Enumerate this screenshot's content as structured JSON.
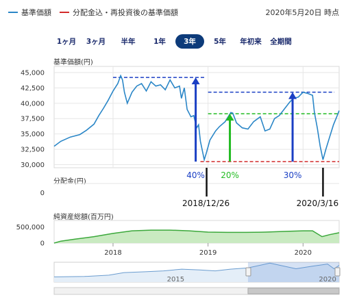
{
  "legend": [
    {
      "label": "基準価額",
      "color": "#2a86c7"
    },
    {
      "label": "分配金込・再投資後の基準価額",
      "color": "#d22a2a"
    }
  ],
  "as_of": "2020年5月20日 時点",
  "tabs": [
    {
      "label": "1ヶ月",
      "active": false
    },
    {
      "label": "3ヶ月",
      "active": false
    },
    {
      "label": "半年",
      "active": false
    },
    {
      "label": "1年",
      "active": false
    },
    {
      "label": "3年",
      "active": true
    },
    {
      "label": "5年",
      "active": false
    },
    {
      "label": "年初来",
      "active": false
    },
    {
      "label": "全期間",
      "active": false
    }
  ],
  "sections": {
    "nav": "基準価額(円)",
    "dist": "分配金(円)",
    "assets": "純資産総額(百万円)"
  },
  "chart_data": [
    {
      "type": "line",
      "ylabel": "基準価額(円)",
      "yticks": [
        "45,000",
        "42,500",
        "40,000",
        "37,500",
        "35,000",
        "32,500",
        "30,000"
      ],
      "ylim": [
        29500,
        46000
      ],
      "xlim": [
        2017.38,
        2020.38
      ],
      "series": [
        {
          "color": "#2a86c7",
          "points": [
            [
              2017.38,
              33000
            ],
            [
              2017.45,
              33800
            ],
            [
              2017.55,
              34500
            ],
            [
              2017.65,
              34900
            ],
            [
              2017.72,
              35600
            ],
            [
              2017.8,
              36600
            ],
            [
              2017.85,
              38000
            ],
            [
              2017.9,
              39200
            ],
            [
              2017.95,
              40500
            ],
            [
              2018.0,
              42000
            ],
            [
              2018.05,
              43200
            ],
            [
              2018.08,
              44500
            ],
            [
              2018.1,
              43800
            ],
            [
              2018.12,
              41800
            ],
            [
              2018.15,
              40000
            ],
            [
              2018.2,
              41800
            ],
            [
              2018.25,
              42800
            ],
            [
              2018.3,
              43200
            ],
            [
              2018.35,
              42000
            ],
            [
              2018.4,
              43500
            ],
            [
              2018.45,
              42800
            ],
            [
              2018.5,
              43000
            ],
            [
              2018.55,
              42200
            ],
            [
              2018.6,
              43800
            ],
            [
              2018.65,
              42500
            ],
            [
              2018.7,
              42800
            ],
            [
              2018.72,
              40800
            ],
            [
              2018.75,
              42500
            ],
            [
              2018.78,
              39000
            ],
            [
              2018.82,
              37800
            ],
            [
              2018.85,
              38000
            ],
            [
              2018.88,
              36000
            ],
            [
              2018.9,
              36500
            ],
            [
              2018.92,
              33800
            ],
            [
              2018.96,
              30800
            ],
            [
              2018.98,
              31800
            ],
            [
              2019.02,
              34000
            ],
            [
              2019.08,
              35500
            ],
            [
              2019.12,
              36200
            ],
            [
              2019.18,
              37000
            ],
            [
              2019.24,
              38500
            ],
            [
              2019.26,
              38400
            ],
            [
              2019.3,
              36800
            ],
            [
              2019.36,
              36000
            ],
            [
              2019.42,
              35800
            ],
            [
              2019.48,
              37000
            ],
            [
              2019.55,
              37800
            ],
            [
              2019.6,
              35500
            ],
            [
              2019.65,
              35800
            ],
            [
              2019.7,
              37500
            ],
            [
              2019.75,
              38000
            ],
            [
              2019.8,
              39000
            ],
            [
              2019.86,
              40200
            ],
            [
              2019.9,
              40800
            ],
            [
              2019.95,
              41000
            ],
            [
              2020.0,
              41800
            ],
            [
              2020.05,
              41600
            ],
            [
              2020.1,
              41300
            ],
            [
              2020.12,
              38500
            ],
            [
              2020.15,
              36000
            ],
            [
              2020.18,
              33000
            ],
            [
              2020.21,
              30800
            ],
            [
              2020.24,
              32500
            ],
            [
              2020.28,
              34500
            ],
            [
              2020.32,
              36500
            ],
            [
              2020.36,
              38000
            ],
            [
              2020.38,
              38800
            ]
          ]
        }
      ],
      "annotations": [
        {
          "text": "40%",
          "color": "#1a3fc4"
        },
        {
          "text": "20%",
          "color": "#22bb22"
        },
        {
          "text": "30%",
          "color": "#1a3fc4"
        },
        {
          "text": "2018/12/26",
          "color": "#111111"
        },
        {
          "text": "2020/3/16",
          "color": "#111111"
        }
      ],
      "reference_lines": [
        {
          "value": 44200,
          "color": "#1a3fc4",
          "x_range": [
            2018.0,
            2018.97
          ]
        },
        {
          "value": 41800,
          "color": "#1a3fc4",
          "x_range": [
            2019.0,
            2020.33
          ]
        },
        {
          "value": 38300,
          "color": "#22bb22",
          "x_range": [
            2019.0,
            2020.38
          ]
        },
        {
          "value": 30500,
          "color": "#d22a2a",
          "x_range": [
            2018.92,
            2020.38
          ]
        }
      ]
    },
    {
      "type": "line",
      "ylabel": "分配金(円)",
      "yticks": [
        "0"
      ],
      "series": [
        {
          "color": "#2a86c7",
          "points": [
            [
              2017.38,
              0
            ],
            [
              2020.38,
              0
            ]
          ]
        }
      ]
    },
    {
      "type": "area",
      "ylabel": "純資産総額(百万円)",
      "yticks": [
        "500,000",
        "0"
      ],
      "xticks": [
        "2018",
        "2019",
        "2020"
      ],
      "ylim": [
        0,
        700000
      ],
      "xlim": [
        2017.38,
        2020.38
      ],
      "series": [
        {
          "color": "#3ba83b",
          "points": [
            [
              2017.38,
              0
            ],
            [
              2017.45,
              60000
            ],
            [
              2017.6,
              120000
            ],
            [
              2017.8,
              200000
            ],
            [
              2018.0,
              300000
            ],
            [
              2018.2,
              380000
            ],
            [
              2018.4,
              400000
            ],
            [
              2018.6,
              400000
            ],
            [
              2018.8,
              380000
            ],
            [
              2019.0,
              340000
            ],
            [
              2019.2,
              330000
            ],
            [
              2019.4,
              330000
            ],
            [
              2019.6,
              340000
            ],
            [
              2019.8,
              360000
            ],
            [
              2020.0,
              380000
            ],
            [
              2020.1,
              380000
            ],
            [
              2020.2,
              200000
            ],
            [
              2020.28,
              260000
            ],
            [
              2020.38,
              320000
            ]
          ]
        }
      ]
    },
    {
      "type": "area",
      "ylabel": "",
      "xticks": [
        "2015",
        "2020"
      ],
      "ylim": [
        0,
        46000
      ],
      "xlim": [
        2011.0,
        2020.38
      ],
      "selected_range": [
        2017.38,
        2020.38
      ],
      "series": [
        {
          "color": "#2a86c7",
          "points": [
            [
              2011.0,
              12000
            ],
            [
              2012.0,
              13000
            ],
            [
              2012.8,
              16000
            ],
            [
              2013.3,
              22000
            ],
            [
              2014.0,
              24000
            ],
            [
              2014.6,
              26000
            ],
            [
              2015.2,
              30000
            ],
            [
              2015.8,
              28000
            ],
            [
              2016.3,
              26000
            ],
            [
              2016.8,
              30000
            ],
            [
              2017.38,
              33000
            ],
            [
              2018.1,
              44000
            ],
            [
              2018.96,
              31000
            ],
            [
              2019.5,
              37000
            ],
            [
              2020.0,
              41800
            ],
            [
              2020.21,
              31000
            ],
            [
              2020.38,
              38800
            ]
          ]
        }
      ]
    }
  ]
}
